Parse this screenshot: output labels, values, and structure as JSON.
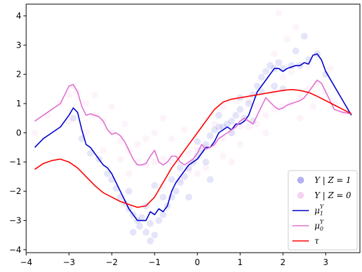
{
  "chart_data": {
    "type": "scatter",
    "title": "",
    "xlabel": "",
    "ylabel": "",
    "xlim": [
      -4.0,
      3.8
    ],
    "ylim": [
      -4.1,
      4.4
    ],
    "xticks": [
      -4,
      -3,
      -2,
      -1,
      0,
      1,
      2,
      3
    ],
    "yticks": [
      -4,
      -3,
      -2,
      -1,
      0,
      1,
      2,
      3,
      4
    ],
    "grid": false,
    "legend_position": "bottom-right",
    "scatter_series": [
      {
        "name": "Y | Z = 1",
        "legend_label": "Y | Z = 1",
        "color": "#0000cc",
        "opacity": 0.1,
        "note": "dense cloud following mu1 curve",
        "points": [
          [
            -2.9,
            0.5
          ],
          [
            -2.7,
            -0.2
          ],
          [
            -2.5,
            -0.7
          ],
          [
            -2.3,
            -0.9
          ],
          [
            -2.1,
            -1.4
          ],
          [
            -2.0,
            -1.6
          ],
          [
            -1.9,
            -1.9
          ],
          [
            -1.8,
            -2.2
          ],
          [
            -1.7,
            -2.4
          ],
          [
            -1.6,
            -2.6
          ],
          [
            -1.5,
            -2.8
          ],
          [
            -1.4,
            -3.0
          ],
          [
            -1.35,
            -3.2
          ],
          [
            -1.3,
            -2.9
          ],
          [
            -1.2,
            -3.4
          ],
          [
            -1.1,
            -3.1
          ],
          [
            -1.0,
            -3.5
          ],
          [
            -0.9,
            -3.0
          ],
          [
            -0.8,
            -2.8
          ],
          [
            -0.7,
            -2.5
          ],
          [
            -0.6,
            -2.2
          ],
          [
            -0.5,
            -2.0
          ],
          [
            -0.4,
            -1.7
          ],
          [
            -0.3,
            -1.5
          ],
          [
            -0.2,
            -1.2
          ],
          [
            -0.1,
            -1.0
          ],
          [
            0.0,
            -0.8
          ],
          [
            0.1,
            -0.6
          ],
          [
            0.2,
            -0.4
          ],
          [
            0.3,
            -0.1
          ],
          [
            0.4,
            0.1
          ],
          [
            0.5,
            0.2
          ],
          [
            0.6,
            0.2
          ],
          [
            0.7,
            0.3
          ],
          [
            0.8,
            0.4
          ],
          [
            0.9,
            0.6
          ],
          [
            1.0,
            0.8
          ],
          [
            1.1,
            0.5
          ],
          [
            1.2,
            1.0
          ],
          [
            1.3,
            1.3
          ],
          [
            1.4,
            1.6
          ],
          [
            1.5,
            1.9
          ],
          [
            1.6,
            2.1
          ],
          [
            1.7,
            2.3
          ],
          [
            1.8,
            2.2
          ],
          [
            1.9,
            2.4
          ],
          [
            2.0,
            2.2
          ],
          [
            2.2,
            2.3
          ],
          [
            2.4,
            2.3
          ],
          [
            2.6,
            2.5
          ],
          [
            2.8,
            2.7
          ],
          [
            3.0,
            2.0
          ],
          [
            -1.6,
            -2.0
          ],
          [
            -1.2,
            -2.5
          ],
          [
            -0.8,
            -2.2
          ],
          [
            -0.4,
            -1.2
          ],
          [
            0.0,
            -0.3
          ],
          [
            0.5,
            0.6
          ],
          [
            1.0,
            1.2
          ],
          [
            1.5,
            1.4
          ],
          [
            -1.0,
            -1.8
          ],
          [
            -0.6,
            -1.6
          ],
          [
            0.2,
            -1.0
          ],
          [
            0.8,
            0.0
          ],
          [
            1.8,
            1.6
          ],
          [
            2.3,
            2.8
          ],
          [
            2.5,
            3.3
          ],
          [
            -1.5,
            -3.4
          ],
          [
            -1.1,
            -3.7
          ],
          [
            -0.2,
            -2.2
          ],
          [
            0.3,
            -1.6
          ],
          [
            1.3,
            0.4
          ],
          [
            2.0,
            1.5
          ]
        ]
      },
      {
        "name": "Y | Z = 0",
        "legend_label": "Y | Z = 0",
        "color": "#e070d0",
        "opacity": 0.08,
        "note": "broad cloud following mu0 curve",
        "points": [
          [
            -3.8,
            0.0
          ],
          [
            -3.5,
            0.6
          ],
          [
            -3.2,
            1.0
          ],
          [
            -3.0,
            1.3
          ],
          [
            -2.8,
            1.4
          ],
          [
            -2.6,
            1.0
          ],
          [
            -2.4,
            0.6
          ],
          [
            -2.2,
            0.4
          ],
          [
            -2.0,
            0.0
          ],
          [
            -1.8,
            -0.3
          ],
          [
            -1.6,
            -0.6
          ],
          [
            -1.4,
            -1.0
          ],
          [
            -1.2,
            -1.1
          ],
          [
            -1.0,
            -1.0
          ],
          [
            -0.8,
            -0.9
          ],
          [
            -0.6,
            -1.0
          ],
          [
            -0.4,
            -0.8
          ],
          [
            -0.2,
            -0.7
          ],
          [
            0.0,
            -0.6
          ],
          [
            0.2,
            -0.5
          ],
          [
            0.4,
            -0.4
          ],
          [
            0.6,
            -0.2
          ],
          [
            0.8,
            0.0
          ],
          [
            1.0,
            0.2
          ],
          [
            1.2,
            0.2
          ],
          [
            1.4,
            0.3
          ],
          [
            1.6,
            0.6
          ],
          [
            1.8,
            0.8
          ],
          [
            2.0,
            0.9
          ],
          [
            2.2,
            1.0
          ],
          [
            2.4,
            1.2
          ],
          [
            2.6,
            1.5
          ],
          [
            2.8,
            1.7
          ],
          [
            3.0,
            1.4
          ],
          [
            3.2,
            1.0
          ],
          [
            3.4,
            0.7
          ],
          [
            -2.6,
            0.0
          ],
          [
            -2.2,
            -0.6
          ],
          [
            -1.8,
            -0.9
          ],
          [
            -1.4,
            -0.4
          ],
          [
            -1.0,
            0.0
          ],
          [
            -0.6,
            -0.2
          ],
          [
            -0.2,
            -1.3
          ],
          [
            0.2,
            -1.2
          ],
          [
            0.6,
            -0.8
          ],
          [
            1.0,
            -0.4
          ],
          [
            1.4,
            0.9
          ],
          [
            1.8,
            1.4
          ],
          [
            2.2,
            2.1
          ],
          [
            2.6,
            2.3
          ],
          [
            -3.0,
            0.4
          ],
          [
            -2.0,
            0.9
          ],
          [
            -1.2,
            -0.2
          ],
          [
            -0.4,
            -1.6
          ],
          [
            0.4,
            0.3
          ],
          [
            1.2,
            1.1
          ],
          [
            2.0,
            1.9
          ],
          [
            2.7,
            0.9
          ],
          [
            -1.6,
            -1.4
          ],
          [
            -0.8,
            -1.8
          ],
          [
            0.0,
            -1.4
          ],
          [
            0.8,
            -1.0
          ],
          [
            1.6,
            0.0
          ],
          [
            2.4,
            0.5
          ],
          [
            3.1,
            2.2
          ],
          [
            -2.9,
            1.6
          ],
          [
            -2.4,
            1.3
          ],
          [
            0.6,
            0.9
          ],
          [
            1.8,
            2.7
          ],
          [
            2.1,
            3.2
          ],
          [
            2.3,
            3.6
          ],
          [
            1.9,
            4.1
          ],
          [
            -0.8,
            0.5
          ],
          [
            -0.3,
            0.1
          ],
          [
            0.9,
            1.1
          ],
          [
            -1.7,
            0.3
          ]
        ]
      }
    ],
    "line_series": [
      {
        "name": "μ_1^Y",
        "legend_label": "μ",
        "legend_sub": "1",
        "legend_sup": "Y",
        "color": "#0000cc",
        "x": [
          -3.8,
          -3.6,
          -3.4,
          -3.2,
          -3.0,
          -2.9,
          -2.8,
          -2.7,
          -2.6,
          -2.5,
          -2.4,
          -2.3,
          -2.2,
          -2.1,
          -2.0,
          -1.9,
          -1.8,
          -1.7,
          -1.6,
          -1.5,
          -1.4,
          -1.3,
          -1.2,
          -1.1,
          -1.0,
          -0.9,
          -0.8,
          -0.7,
          -0.6,
          -0.5,
          -0.4,
          -0.3,
          -0.2,
          -0.1,
          0.0,
          0.1,
          0.2,
          0.3,
          0.4,
          0.5,
          0.6,
          0.7,
          0.8,
          0.9,
          1.0,
          1.1,
          1.2,
          1.3,
          1.4,
          1.5,
          1.6,
          1.7,
          1.8,
          1.9,
          2.0,
          2.1,
          2.2,
          2.3,
          2.4,
          2.5,
          2.6,
          2.7,
          2.8,
          2.9,
          3.0,
          3.2,
          3.4,
          3.6
        ],
        "y": [
          -0.5,
          -0.2,
          0.0,
          0.2,
          0.6,
          0.85,
          0.7,
          0.1,
          -0.4,
          -0.5,
          -0.7,
          -0.9,
          -1.1,
          -1.2,
          -1.4,
          -1.7,
          -2.0,
          -2.3,
          -2.6,
          -2.8,
          -3.0,
          -3.0,
          -3.0,
          -2.7,
          -2.8,
          -2.6,
          -2.7,
          -2.5,
          -2.0,
          -1.7,
          -1.5,
          -1.3,
          -1.1,
          -1.0,
          -0.9,
          -0.7,
          -0.5,
          -0.5,
          -0.3,
          0.0,
          0.1,
          0.2,
          0.1,
          0.3,
          0.3,
          0.4,
          0.6,
          1.0,
          1.4,
          1.6,
          1.8,
          2.0,
          2.2,
          2.2,
          2.1,
          2.2,
          2.25,
          2.3,
          2.3,
          2.4,
          2.35,
          2.65,
          2.7,
          2.5,
          2.1,
          1.6,
          1.1,
          0.6
        ]
      },
      {
        "name": "μ_0^Y",
        "legend_label": "μ",
        "legend_sub": "0",
        "legend_sup": "Y",
        "color": "#e070d0",
        "x": [
          -3.8,
          -3.6,
          -3.4,
          -3.2,
          -3.1,
          -3.0,
          -2.9,
          -2.8,
          -2.7,
          -2.6,
          -2.5,
          -2.4,
          -2.3,
          -2.2,
          -2.1,
          -2.0,
          -1.9,
          -1.8,
          -1.7,
          -1.6,
          -1.5,
          -1.4,
          -1.3,
          -1.2,
          -1.1,
          -1.0,
          -0.9,
          -0.8,
          -0.7,
          -0.6,
          -0.5,
          -0.4,
          -0.3,
          -0.2,
          -0.1,
          0.0,
          0.1,
          0.2,
          0.3,
          0.4,
          0.5,
          0.6,
          0.7,
          0.8,
          0.9,
          1.0,
          1.1,
          1.2,
          1.3,
          1.4,
          1.5,
          1.6,
          1.7,
          1.8,
          1.9,
          2.0,
          2.1,
          2.2,
          2.3,
          2.4,
          2.5,
          2.6,
          2.7,
          2.8,
          2.9,
          3.0,
          3.2,
          3.4,
          3.6
        ],
        "y": [
          0.4,
          0.6,
          0.8,
          1.0,
          1.3,
          1.6,
          1.65,
          1.4,
          0.9,
          0.6,
          0.65,
          0.6,
          0.55,
          0.4,
          0.1,
          -0.05,
          0.0,
          -0.1,
          -0.3,
          -0.6,
          -0.9,
          -1.1,
          -1.1,
          -1.05,
          -0.8,
          -0.6,
          -1.0,
          -1.1,
          -1.0,
          -0.8,
          -0.8,
          -1.0,
          -1.1,
          -1.0,
          -0.9,
          -0.7,
          -0.4,
          -0.55,
          -0.5,
          -0.4,
          -0.2,
          -0.1,
          0.0,
          0.1,
          0.2,
          0.4,
          0.5,
          0.4,
          0.3,
          0.6,
          0.9,
          1.2,
          1.05,
          0.9,
          0.8,
          0.85,
          0.95,
          1.0,
          1.05,
          1.1,
          1.2,
          1.4,
          1.6,
          1.8,
          1.7,
          1.4,
          0.8,
          0.7,
          0.65
        ]
      },
      {
        "name": "τ",
        "legend_label": "τ",
        "color": "#ff0000",
        "x": [
          -3.8,
          -3.6,
          -3.4,
          -3.2,
          -3.0,
          -2.8,
          -2.6,
          -2.4,
          -2.2,
          -2.0,
          -1.8,
          -1.6,
          -1.4,
          -1.2,
          -1.0,
          -0.8,
          -0.6,
          -0.4,
          -0.2,
          0.0,
          0.2,
          0.4,
          0.6,
          0.8,
          1.0,
          1.2,
          1.4,
          1.6,
          1.8,
          2.0,
          2.2,
          2.4,
          2.6,
          2.8,
          3.0,
          3.2,
          3.4,
          3.6
        ],
        "y": [
          -1.25,
          -1.05,
          -0.95,
          -0.9,
          -1.0,
          -1.2,
          -1.5,
          -1.8,
          -2.05,
          -2.2,
          -2.35,
          -2.45,
          -2.55,
          -2.5,
          -2.2,
          -1.7,
          -1.2,
          -0.8,
          -0.4,
          0.0,
          0.4,
          0.8,
          1.05,
          1.15,
          1.2,
          1.25,
          1.3,
          1.35,
          1.4,
          1.45,
          1.48,
          1.45,
          1.38,
          1.25,
          1.1,
          0.95,
          0.8,
          0.65
        ]
      }
    ]
  }
}
